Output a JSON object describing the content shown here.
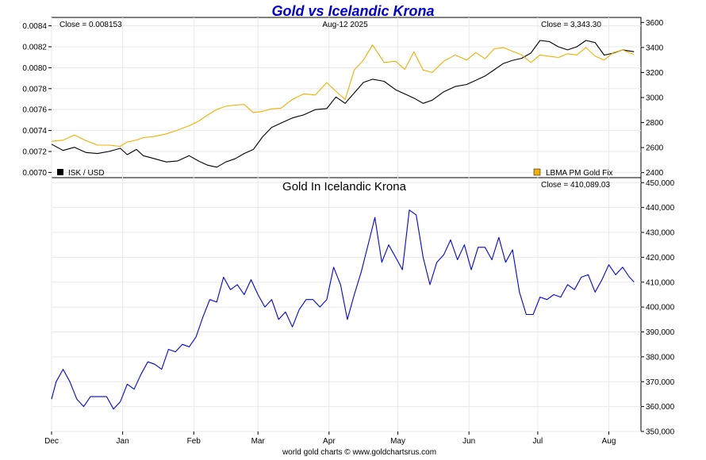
{
  "title": "Gold vs Icelandic Krona",
  "footer": "world gold charts © www.goldchartsrus.com",
  "colors": {
    "title": "#0000dd",
    "isk": "#000000",
    "gold": "#f0b000",
    "gold_isk": "#0000ee",
    "grid": "#e8e8e8",
    "axis": "#000000"
  },
  "chart_data": [
    {
      "type": "line",
      "name": "top",
      "date_label": "Aug-12  2025",
      "left_close": "Close = 0.008153",
      "right_close": "Close = 3,343.30",
      "legend_left": "ISK / USD",
      "legend_right": "LBMA PM Gold Fix",
      "y_left": {
        "min": 0.00695,
        "max": 0.00848,
        "ticks": [
          "0.0070",
          "0.0072",
          "0.0074",
          "0.0076",
          "0.0078",
          "0.0080",
          "0.0082",
          "0.0084"
        ],
        "tick_values": [
          0.007,
          0.0072,
          0.0074,
          0.0076,
          0.0078,
          0.008,
          0.0082,
          0.0084
        ]
      },
      "y_right": {
        "min": 2360,
        "max": 3640,
        "ticks": [
          "2400",
          "2600",
          "2800",
          "3000",
          "3200",
          "3400",
          "3600"
        ],
        "tick_values": [
          2400,
          2600,
          2800,
          3000,
          3200,
          3400,
          3600
        ]
      },
      "series": [
        {
          "name": "ISK / USD",
          "axis": "left",
          "color": "#000000",
          "points": [
            [
              "2024-12-01",
              0.00727
            ],
            [
              "2024-12-06",
              0.00721
            ],
            [
              "2024-12-11",
              0.00724
            ],
            [
              "2024-12-16",
              0.00719
            ],
            [
              "2024-12-21",
              0.00718
            ],
            [
              "2024-12-26",
              0.0072
            ],
            [
              "2024-12-31",
              0.00723
            ],
            [
              "2025-01-03",
              0.00717
            ],
            [
              "2025-01-07",
              0.00722
            ],
            [
              "2025-01-10",
              0.00716
            ],
            [
              "2025-01-15",
              0.00713
            ],
            [
              "2025-01-20",
              0.0071
            ],
            [
              "2025-01-25",
              0.00711
            ],
            [
              "2025-01-30",
              0.00716
            ],
            [
              "2025-02-03",
              0.00711
            ],
            [
              "2025-02-07",
              0.00707
            ],
            [
              "2025-02-11",
              0.00705
            ],
            [
              "2025-02-15",
              0.0071
            ],
            [
              "2025-02-19",
              0.00713
            ],
            [
              "2025-02-23",
              0.00718
            ],
            [
              "2025-02-27",
              0.00722
            ],
            [
              "2025-03-03",
              0.00734
            ],
            [
              "2025-03-07",
              0.00743
            ],
            [
              "2025-03-11",
              0.00747
            ],
            [
              "2025-03-16",
              0.00752
            ],
            [
              "2025-03-21",
              0.00755
            ],
            [
              "2025-03-26",
              0.0076
            ],
            [
              "2025-03-31",
              0.00761
            ],
            [
              "2025-04-04",
              0.00772
            ],
            [
              "2025-04-08",
              0.00766
            ],
            [
              "2025-04-12",
              0.00776
            ],
            [
              "2025-04-16",
              0.00786
            ],
            [
              "2025-04-20",
              0.00789
            ],
            [
              "2025-04-25",
              0.00787
            ],
            [
              "2025-04-30",
              0.00779
            ],
            [
              "2025-05-04",
              0.00775
            ],
            [
              "2025-05-08",
              0.00771
            ],
            [
              "2025-05-12",
              0.00766
            ],
            [
              "2025-05-16",
              0.00769
            ],
            [
              "2025-05-21",
              0.00777
            ],
            [
              "2025-05-26",
              0.00782
            ],
            [
              "2025-05-31",
              0.00784
            ],
            [
              "2025-06-04",
              0.00788
            ],
            [
              "2025-06-08",
              0.00792
            ],
            [
              "2025-06-12",
              0.00798
            ],
            [
              "2025-06-16",
              0.00804
            ],
            [
              "2025-06-20",
              0.00807
            ],
            [
              "2025-06-24",
              0.00809
            ],
            [
              "2025-06-28",
              0.00814
            ],
            [
              "2025-07-02",
              0.00826
            ],
            [
              "2025-07-06",
              0.00825
            ],
            [
              "2025-07-10",
              0.0082
            ],
            [
              "2025-07-14",
              0.00817
            ],
            [
              "2025-07-18",
              0.0082
            ],
            [
              "2025-07-22",
              0.00826
            ],
            [
              "2025-07-26",
              0.00824
            ],
            [
              "2025-07-30",
              0.00812
            ],
            [
              "2025-08-03",
              0.00814
            ],
            [
              "2025-08-07",
              0.00817
            ],
            [
              "2025-08-12",
              0.008153
            ]
          ]
        },
        {
          "name": "LBMA PM Gold Fix",
          "axis": "right",
          "color": "#f0b000",
          "points": [
            [
              "2024-12-01",
              2650
            ],
            [
              "2024-12-06",
              2660
            ],
            [
              "2024-12-11",
              2700
            ],
            [
              "2024-12-16",
              2655
            ],
            [
              "2024-12-21",
              2620
            ],
            [
              "2024-12-26",
              2620
            ],
            [
              "2024-12-31",
              2610
            ],
            [
              "2025-01-03",
              2645
            ],
            [
              "2025-01-07",
              2660
            ],
            [
              "2025-01-10",
              2680
            ],
            [
              "2025-01-15",
              2690
            ],
            [
              "2025-01-20",
              2710
            ],
            [
              "2025-01-25",
              2740
            ],
            [
              "2025-01-30",
              2775
            ],
            [
              "2025-02-03",
              2810
            ],
            [
              "2025-02-07",
              2860
            ],
            [
              "2025-02-11",
              2905
            ],
            [
              "2025-02-15",
              2930
            ],
            [
              "2025-02-19",
              2940
            ],
            [
              "2025-02-23",
              2945
            ],
            [
              "2025-02-27",
              2880
            ],
            [
              "2025-03-03",
              2890
            ],
            [
              "2025-03-07",
              2910
            ],
            [
              "2025-03-11",
              2915
            ],
            [
              "2025-03-16",
              2985
            ],
            [
              "2025-03-21",
              3030
            ],
            [
              "2025-03-26",
              3020
            ],
            [
              "2025-03-31",
              3120
            ],
            [
              "2025-04-04",
              3050
            ],
            [
              "2025-04-08",
              2985
            ],
            [
              "2025-04-12",
              3220
            ],
            [
              "2025-04-16",
              3300
            ],
            [
              "2025-04-20",
              3420
            ],
            [
              "2025-04-25",
              3280
            ],
            [
              "2025-04-30",
              3290
            ],
            [
              "2025-05-04",
              3225
            ],
            [
              "2025-05-08",
              3365
            ],
            [
              "2025-05-12",
              3220
            ],
            [
              "2025-05-16",
              3200
            ],
            [
              "2025-05-21",
              3290
            ],
            [
              "2025-05-26",
              3340
            ],
            [
              "2025-05-31",
              3300
            ],
            [
              "2025-06-04",
              3360
            ],
            [
              "2025-06-08",
              3310
            ],
            [
              "2025-06-12",
              3390
            ],
            [
              "2025-06-16",
              3400
            ],
            [
              "2025-06-20",
              3370
            ],
            [
              "2025-06-24",
              3340
            ],
            [
              "2025-06-28",
              3280
            ],
            [
              "2025-07-02",
              3340
            ],
            [
              "2025-07-06",
              3330
            ],
            [
              "2025-07-10",
              3320
            ],
            [
              "2025-07-14",
              3350
            ],
            [
              "2025-07-18",
              3340
            ],
            [
              "2025-07-22",
              3400
            ],
            [
              "2025-07-26",
              3330
            ],
            [
              "2025-07-30",
              3300
            ],
            [
              "2025-08-03",
              3360
            ],
            [
              "2025-08-07",
              3380
            ],
            [
              "2025-08-12",
              3343.3
            ]
          ]
        }
      ]
    },
    {
      "type": "line",
      "name": "bottom",
      "title": "Gold In Icelandic Krona",
      "close": "Close = 410,089.03",
      "y_right": {
        "min": 350000,
        "max": 452000,
        "ticks": [
          "350,000",
          "360,000",
          "370,000",
          "380,000",
          "390,000",
          "400,000",
          "410,000",
          "420,000",
          "430,000",
          "440,000",
          "450,000"
        ],
        "tick_values": [
          350000,
          360000,
          370000,
          380000,
          390000,
          400000,
          410000,
          420000,
          430000,
          440000,
          450000
        ]
      },
      "x_labels": [
        "Dec",
        "Jan",
        "Feb",
        "Mar",
        "Apr",
        "May",
        "Jun",
        "Jul",
        "Aug"
      ],
      "x_label_dates": [
        "2024-12-01",
        "2025-01-01",
        "2025-02-01",
        "2025-03-01",
        "2025-04-01",
        "2025-05-01",
        "2025-06-01",
        "2025-07-01",
        "2025-08-01"
      ],
      "x_range": [
        "2024-12-01",
        "2025-08-15"
      ],
      "series": [
        {
          "name": "Gold In Icelandic Krona",
          "color": "#0000ee",
          "points": [
            [
              "2024-12-01",
              363000
            ],
            [
              "2024-12-03",
              370000
            ],
            [
              "2024-12-06",
              375000
            ],
            [
              "2024-12-09",
              370000
            ],
            [
              "2024-12-12",
              363000
            ],
            [
              "2024-12-15",
              360000
            ],
            [
              "2024-12-18",
              364000
            ],
            [
              "2024-12-22",
              364000
            ],
            [
              "2024-12-25",
              364000
            ],
            [
              "2024-12-28",
              359000
            ],
            [
              "2024-12-31",
              362000
            ],
            [
              "2025-01-03",
              369000
            ],
            [
              "2025-01-06",
              367000
            ],
            [
              "2025-01-09",
              373000
            ],
            [
              "2025-01-12",
              378000
            ],
            [
              "2025-01-15",
              377000
            ],
            [
              "2025-01-18",
              375000
            ],
            [
              "2025-01-21",
              383000
            ],
            [
              "2025-01-24",
              382000
            ],
            [
              "2025-01-27",
              385000
            ],
            [
              "2025-01-30",
              384000
            ],
            [
              "2025-02-02",
              388000
            ],
            [
              "2025-02-05",
              396000
            ],
            [
              "2025-02-08",
              403000
            ],
            [
              "2025-02-11",
              402000
            ],
            [
              "2025-02-14",
              412000
            ],
            [
              "2025-02-17",
              407000
            ],
            [
              "2025-02-20",
              409000
            ],
            [
              "2025-02-23",
              405000
            ],
            [
              "2025-02-26",
              411000
            ],
            [
              "2025-03-01",
              405000
            ],
            [
              "2025-03-04",
              400000
            ],
            [
              "2025-03-07",
              403000
            ],
            [
              "2025-03-10",
              395000
            ],
            [
              "2025-03-13",
              398000
            ],
            [
              "2025-03-16",
              392000
            ],
            [
              "2025-03-19",
              399000
            ],
            [
              "2025-03-22",
              403000
            ],
            [
              "2025-03-25",
              403000
            ],
            [
              "2025-03-28",
              400000
            ],
            [
              "2025-03-31",
              403000
            ],
            [
              "2025-04-03",
              416000
            ],
            [
              "2025-04-06",
              409000
            ],
            [
              "2025-04-09",
              395000
            ],
            [
              "2025-04-12",
              405000
            ],
            [
              "2025-04-15",
              414000
            ],
            [
              "2025-04-18",
              425000
            ],
            [
              "2025-04-21",
              436000
            ],
            [
              "2025-04-24",
              418000
            ],
            [
              "2025-04-27",
              425000
            ],
            [
              "2025-04-30",
              420000
            ],
            [
              "2025-05-03",
              415000
            ],
            [
              "2025-05-06",
              439000
            ],
            [
              "2025-05-09",
              437000
            ],
            [
              "2025-05-12",
              420000
            ],
            [
              "2025-05-15",
              409000
            ],
            [
              "2025-05-18",
              418000
            ],
            [
              "2025-05-21",
              421000
            ],
            [
              "2025-05-24",
              427000
            ],
            [
              "2025-05-27",
              419000
            ],
            [
              "2025-05-30",
              425000
            ],
            [
              "2025-06-02",
              415000
            ],
            [
              "2025-06-05",
              424000
            ],
            [
              "2025-06-08",
              424000
            ],
            [
              "2025-06-11",
              419000
            ],
            [
              "2025-06-14",
              428000
            ],
            [
              "2025-06-17",
              418000
            ],
            [
              "2025-06-20",
              423000
            ],
            [
              "2025-06-23",
              406000
            ],
            [
              "2025-06-26",
              397000
            ],
            [
              "2025-06-29",
              397000
            ],
            [
              "2025-07-02",
              404000
            ],
            [
              "2025-07-05",
              403000
            ],
            [
              "2025-07-08",
              405000
            ],
            [
              "2025-07-11",
              404000
            ],
            [
              "2025-07-14",
              409000
            ],
            [
              "2025-07-17",
              407000
            ],
            [
              "2025-07-20",
              412000
            ],
            [
              "2025-07-23",
              413000
            ],
            [
              "2025-07-26",
              406000
            ],
            [
              "2025-07-29",
              411000
            ],
            [
              "2025-08-01",
              417000
            ],
            [
              "2025-08-04",
              413000
            ],
            [
              "2025-08-07",
              416000
            ],
            [
              "2025-08-10",
              412000
            ],
            [
              "2025-08-12",
              410089.03
            ]
          ]
        }
      ]
    }
  ]
}
